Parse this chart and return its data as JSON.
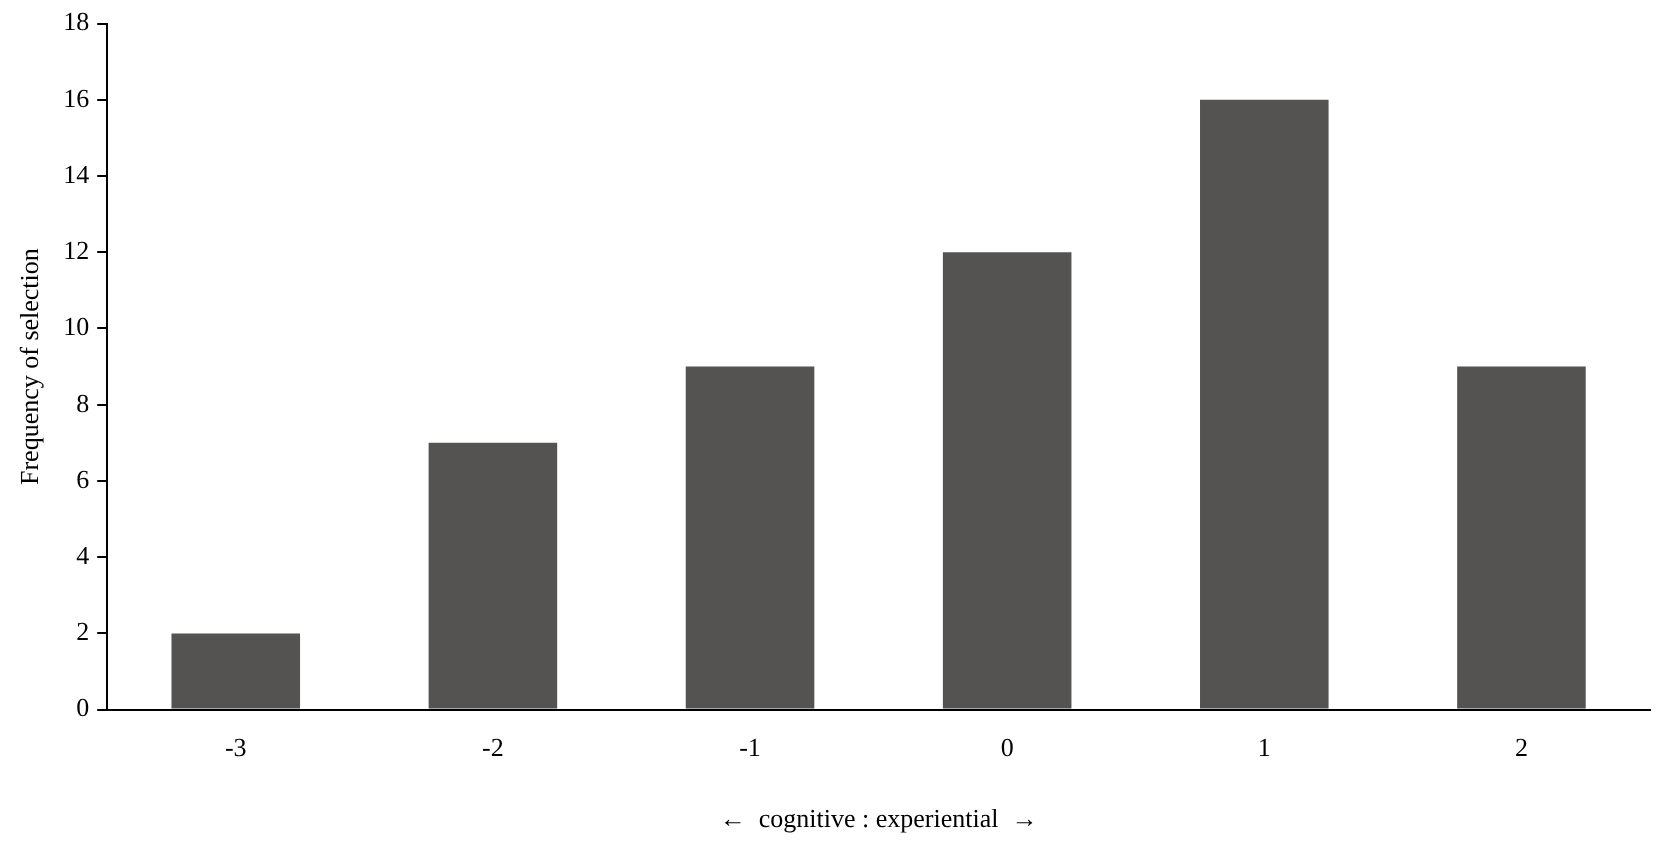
{
  "chart_data": {
    "type": "bar",
    "xlabel": "←  cognitive : experiential  →",
    "ylabel": "Frequency of selection",
    "categories": [
      "-3",
      "-2",
      "-1",
      "0",
      "1",
      "2"
    ],
    "values": [
      2,
      7,
      9,
      12,
      16,
      9
    ],
    "color": "#545351",
    "ylim": [
      0,
      18
    ],
    "yticks": [
      0,
      2,
      4,
      6,
      8,
      10,
      12,
      14,
      16,
      18
    ],
    "grid": false,
    "legend": false
  }
}
